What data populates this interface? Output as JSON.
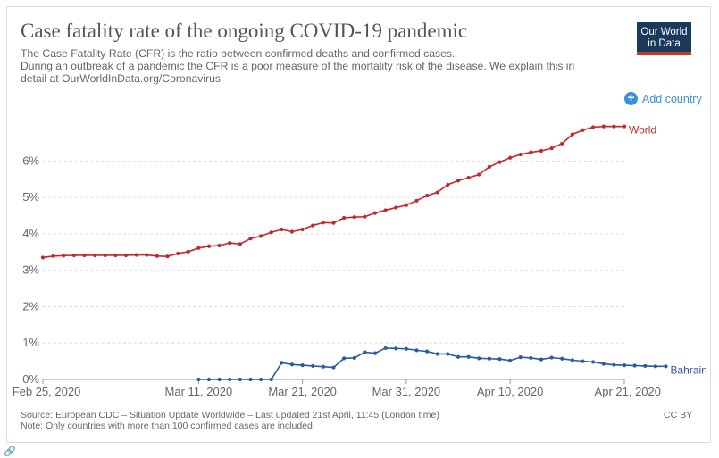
{
  "header": {
    "title": "Case fatality rate of the ongoing COVID-19 pandemic",
    "subtitle_line1": "The Case Fatality Rate (CFR) is the ratio between confirmed deaths and confirmed cases.",
    "subtitle_line2": "During an outbreak of a pandemic the CFR is a poor measure of the mortality risk of the disease. We explain this in",
    "subtitle_line3": "detail at OurWorldInData.org/Coronavirus"
  },
  "logo": {
    "line1": "Our World",
    "line2": "in Data"
  },
  "controls": {
    "add_country_label": "Add country"
  },
  "footer": {
    "source": "Source: European CDC – Situation Update Worldwide – Last updated 21st April, 11:45 (London time)",
    "note": "Note: Only countries with more than 100 confirmed cases are included.",
    "license": "CC BY"
  },
  "colors": {
    "world": "#c0282f",
    "bahrain": "#2b5aa0",
    "grid": "#dddddd",
    "axis_text": "#666666",
    "accent": "#3a8fd9"
  },
  "chart_data": {
    "type": "line",
    "title": "Case fatality rate of the ongoing COVID-19 pandemic",
    "xlabel": "",
    "ylabel": "",
    "x_start": "2020-02-25",
    "x_end": "2020-04-21",
    "day_range": [
      0,
      56
    ],
    "ylim": [
      0,
      6.5
    ],
    "y_ticks": [
      0,
      1,
      2,
      3,
      4,
      5,
      6
    ],
    "y_tick_labels": [
      "0%",
      "1%",
      "2%",
      "3%",
      "4%",
      "5%",
      "6%"
    ],
    "x_ticks": [
      0,
      15,
      25,
      35,
      45,
      56
    ],
    "x_tick_labels": [
      "Feb 25, 2020",
      "Mar 11, 2020",
      "Mar 21, 2020",
      "Mar 31, 2020",
      "Apr 10, 2020",
      "Apr 21, 2020"
    ],
    "grid": true,
    "series": [
      {
        "name": "World",
        "color": "#c0282f",
        "start_day": 0,
        "values": [
          3.35,
          3.39,
          3.4,
          3.41,
          3.41,
          3.41,
          3.41,
          3.41,
          3.41,
          3.42,
          3.42,
          3.39,
          3.38,
          3.46,
          3.51,
          3.61,
          3.66,
          3.68,
          3.75,
          3.72,
          3.87,
          3.94,
          4.04,
          4.12,
          4.06,
          4.12,
          4.23,
          4.31,
          4.3,
          4.44,
          4.46,
          4.47,
          4.57,
          4.65,
          4.72,
          4.79,
          4.91,
          5.05,
          5.14,
          5.35,
          5.46,
          5.54,
          5.63,
          5.84,
          5.97,
          6.09,
          6.18,
          6.24,
          6.28,
          6.35,
          6.48,
          6.73,
          6.85,
          6.93,
          6.95,
          6.95,
          6.95
        ]
      },
      {
        "name": "Bahrain",
        "color": "#2b5aa0",
        "start_day": 15,
        "values": [
          0,
          0,
          0,
          0,
          0,
          0,
          0,
          0,
          0.46,
          0.41,
          0.39,
          0.37,
          0.35,
          0.33,
          0.58,
          0.59,
          0.75,
          0.72,
          0.86,
          0.85,
          0.84,
          0.8,
          0.77,
          0.7,
          0.7,
          0.62,
          0.62,
          0.58,
          0.57,
          0.56,
          0.52,
          0.61,
          0.59,
          0.55,
          0.6,
          0.57,
          0.53,
          0.5,
          0.48,
          0.43,
          0.4,
          0.39,
          0.38,
          0.37,
          0.36,
          0.36
        ]
      }
    ]
  }
}
